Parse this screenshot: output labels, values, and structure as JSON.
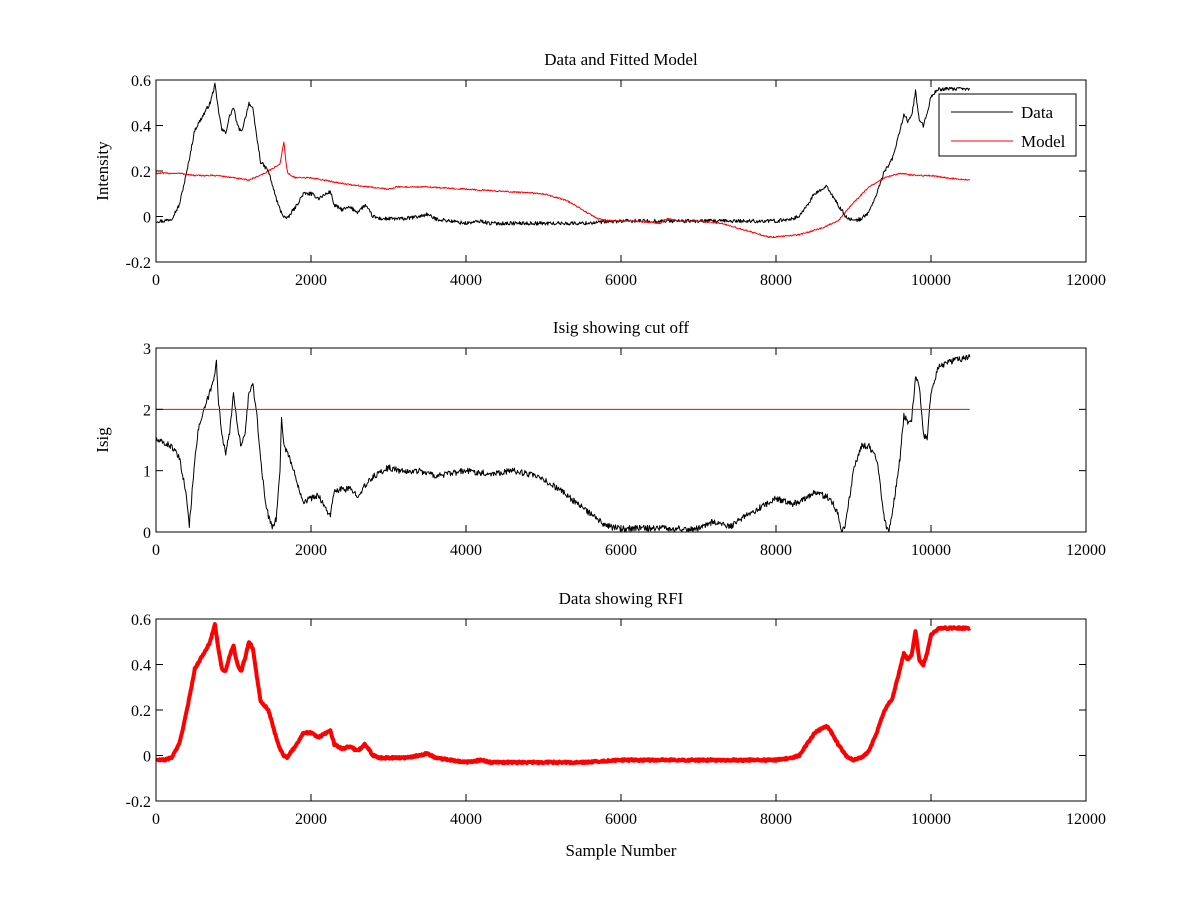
{
  "chart_data": [
    {
      "type": "line",
      "title": "Data and Fitted Model",
      "xlabel": "",
      "ylabel": "Intensity",
      "xlim": [
        0,
        12000
      ],
      "ylim": [
        -0.2,
        0.6
      ],
      "xticks": [
        0,
        2000,
        4000,
        6000,
        8000,
        10000,
        12000
      ],
      "yticks": [
        -0.2,
        0,
        0.2,
        0.4,
        0.6
      ],
      "xtick_labels": [
        "0",
        "2000",
        "4000",
        "6000",
        "8000",
        "10000",
        "12000"
      ],
      "ytick_labels": [
        "-0.2",
        "0",
        "0.2",
        "0.4",
        "0.6"
      ],
      "legend": {
        "position": "top-right",
        "entries": [
          "Data",
          "Model"
        ]
      },
      "series": [
        {
          "name": "Data",
          "color": "#000000",
          "width": 1,
          "noise": 0.008,
          "x": [
            0,
            100,
            200,
            300,
            400,
            500,
            600,
            700,
            760,
            800,
            850,
            900,
            950,
            1000,
            1050,
            1100,
            1150,
            1200,
            1250,
            1300,
            1350,
            1400,
            1450,
            1500,
            1550,
            1600,
            1650,
            1700,
            1750,
            1800,
            1900,
            2000,
            2100,
            2200,
            2250,
            2300,
            2400,
            2500,
            2600,
            2700,
            2800,
            2900,
            3000,
            3200,
            3400,
            3500,
            3600,
            3800,
            4000,
            4200,
            4300,
            4500,
            5000,
            5500,
            6000,
            6500,
            7000,
            7500,
            8000,
            8200,
            8300,
            8400,
            8500,
            8600,
            8650,
            8700,
            8800,
            8900,
            9000,
            9100,
            9200,
            9300,
            9400,
            9500,
            9600,
            9650,
            9700,
            9750,
            9800,
            9850,
            9900,
            9950,
            10000,
            10100,
            10200,
            10300,
            10400,
            10500
          ],
          "values": [
            -0.02,
            -0.02,
            -0.01,
            0.05,
            0.2,
            0.38,
            0.44,
            0.5,
            0.58,
            0.48,
            0.38,
            0.37,
            0.44,
            0.48,
            0.4,
            0.37,
            0.43,
            0.5,
            0.47,
            0.35,
            0.24,
            0.22,
            0.2,
            0.14,
            0.08,
            0.03,
            0.0,
            -0.01,
            0.02,
            0.04,
            0.1,
            0.1,
            0.08,
            0.1,
            0.11,
            0.05,
            0.03,
            0.04,
            0.02,
            0.05,
            0.0,
            -0.01,
            -0.01,
            -0.01,
            0.0,
            0.01,
            -0.01,
            -0.02,
            -0.03,
            -0.02,
            -0.03,
            -0.03,
            -0.03,
            -0.03,
            -0.02,
            -0.02,
            -0.02,
            -0.02,
            -0.02,
            -0.01,
            0.0,
            0.05,
            0.1,
            0.12,
            0.13,
            0.11,
            0.05,
            0.0,
            -0.02,
            -0.01,
            0.02,
            0.1,
            0.2,
            0.25,
            0.38,
            0.45,
            0.42,
            0.44,
            0.55,
            0.42,
            0.4,
            0.45,
            0.53,
            0.56,
            0.56,
            0.56,
            0.56,
            0.56
          ]
        },
        {
          "name": "Model",
          "color": "#ff0000",
          "width": 1,
          "noise": 0.003,
          "x": [
            0,
            300,
            500,
            800,
            1000,
            1200,
            1400,
            1550,
            1600,
            1650,
            1680,
            1700,
            1800,
            2000,
            2500,
            3000,
            3100,
            3500,
            4000,
            4500,
            5000,
            5300,
            5500,
            5700,
            5900,
            6000,
            6200,
            6500,
            6600,
            6800,
            7000,
            7300,
            7500,
            7700,
            7900,
            8000,
            8300,
            8600,
            8800,
            9000,
            9200,
            9400,
            9600,
            9800,
            10000,
            10200,
            10500
          ],
          "values": [
            0.19,
            0.19,
            0.18,
            0.18,
            0.17,
            0.16,
            0.19,
            0.22,
            0.23,
            0.33,
            0.23,
            0.19,
            0.17,
            0.17,
            0.14,
            0.12,
            0.13,
            0.13,
            0.12,
            0.11,
            0.1,
            0.07,
            0.03,
            -0.01,
            -0.02,
            -0.02,
            -0.02,
            -0.03,
            -0.01,
            -0.02,
            -0.02,
            -0.03,
            -0.05,
            -0.07,
            -0.09,
            -0.09,
            -0.08,
            -0.05,
            -0.02,
            0.06,
            0.13,
            0.17,
            0.19,
            0.18,
            0.18,
            0.17,
            0.16
          ]
        }
      ]
    },
    {
      "type": "line",
      "title": "Isig showing cut off",
      "xlabel": "",
      "ylabel": "Isig",
      "xlim": [
        0,
        12000
      ],
      "ylim": [
        0,
        3
      ],
      "xticks": [
        0,
        2000,
        4000,
        6000,
        8000,
        10000,
        12000
      ],
      "yticks": [
        0,
        1,
        2,
        3
      ],
      "xtick_labels": [
        "0",
        "2000",
        "4000",
        "6000",
        "8000",
        "10000",
        "12000"
      ],
      "ytick_labels": [
        "0",
        "1",
        "2",
        "3"
      ],
      "series": [
        {
          "name": "Isig",
          "color": "#000000",
          "width": 1,
          "noise": 0.05,
          "x": [
            0,
            100,
            200,
            300,
            350,
            400,
            430,
            450,
            500,
            550,
            600,
            650,
            700,
            750,
            780,
            800,
            850,
            900,
            950,
            1000,
            1050,
            1100,
            1150,
            1200,
            1250,
            1300,
            1350,
            1400,
            1450,
            1500,
            1550,
            1600,
            1620,
            1650,
            1700,
            1800,
            1900,
            2000,
            2100,
            2200,
            2250,
            2300,
            2400,
            2500,
            2600,
            2700,
            2800,
            3000,
            3200,
            3400,
            3600,
            3800,
            4000,
            4300,
            4600,
            4800,
            5000,
            5200,
            5400,
            5600,
            5800,
            6000,
            6200,
            6500,
            6800,
            7000,
            7200,
            7300,
            7400,
            7600,
            7800,
            8000,
            8200,
            8300,
            8500,
            8600,
            8700,
            8800,
            8850,
            8900,
            9000,
            9100,
            9200,
            9300,
            9400,
            9450,
            9500,
            9600,
            9650,
            9700,
            9750,
            9800,
            9850,
            9900,
            9950,
            10000,
            10100,
            10300,
            10500
          ],
          "values": [
            1.5,
            1.45,
            1.4,
            1.2,
            0.9,
            0.5,
            0.1,
            0.4,
            1.2,
            1.7,
            1.9,
            2.1,
            2.3,
            2.5,
            2.85,
            2.2,
            1.6,
            1.3,
            1.6,
            2.3,
            1.7,
            1.4,
            1.6,
            2.3,
            2.4,
            1.9,
            1.2,
            0.6,
            0.25,
            0.1,
            0.2,
            1.0,
            1.9,
            1.4,
            1.3,
            0.9,
            0.5,
            0.55,
            0.6,
            0.35,
            0.28,
            0.65,
            0.7,
            0.7,
            0.6,
            0.75,
            0.9,
            1.05,
            0.98,
            1.0,
            0.92,
            0.95,
            1.0,
            0.95,
            1.0,
            0.95,
            0.85,
            0.7,
            0.5,
            0.3,
            0.1,
            0.05,
            0.06,
            0.07,
            0.05,
            0.06,
            0.18,
            0.12,
            0.08,
            0.25,
            0.4,
            0.55,
            0.45,
            0.5,
            0.65,
            0.6,
            0.55,
            0.3,
            0.0,
            0.15,
            1.0,
            1.4,
            1.4,
            1.2,
            0.2,
            0.0,
            0.3,
            1.2,
            1.9,
            1.8,
            1.85,
            2.5,
            2.4,
            1.6,
            1.5,
            2.3,
            2.7,
            2.8,
            2.85
          ]
        },
        {
          "name": "Cut off",
          "color": "#ff0000",
          "width": 1,
          "noise": 0,
          "x": [
            0,
            10500
          ],
          "values": [
            2,
            2
          ]
        }
      ]
    },
    {
      "type": "line",
      "title": "Data showing RFI",
      "xlabel": "Sample Number",
      "ylabel": "",
      "xlim": [
        0,
        12000
      ],
      "ylim": [
        -0.2,
        0.6
      ],
      "xticks": [
        0,
        2000,
        4000,
        6000,
        8000,
        10000,
        12000
      ],
      "yticks": [
        -0.2,
        0,
        0.2,
        0.4,
        0.6
      ],
      "xtick_labels": [
        "0",
        "2000",
        "4000",
        "6000",
        "8000",
        "10000",
        "12000"
      ],
      "ytick_labels": [
        "-0.2",
        "0",
        "0.2",
        "0.4",
        "0.6"
      ],
      "series": [
        {
          "name": "RFI",
          "color": "#ff0000",
          "width": 4,
          "noise": 0.004,
          "x": [
            0,
            100,
            200,
            300,
            400,
            500,
            600,
            700,
            760,
            800,
            850,
            900,
            950,
            1000,
            1050,
            1100,
            1150,
            1200,
            1250,
            1300,
            1350,
            1400,
            1450,
            1500,
            1550,
            1600,
            1650,
            1700,
            1750,
            1800,
            1900,
            2000,
            2100,
            2200,
            2250,
            2300,
            2400,
            2500,
            2600,
            2700,
            2800,
            2900,
            3000,
            3200,
            3400,
            3500,
            3600,
            3800,
            4000,
            4200,
            4300,
            4500,
            5000,
            5500,
            6000,
            6500,
            7000,
            7500,
            8000,
            8200,
            8300,
            8400,
            8500,
            8600,
            8650,
            8700,
            8800,
            8900,
            9000,
            9100,
            9200,
            9300,
            9400,
            9500,
            9600,
            9650,
            9700,
            9750,
            9800,
            9850,
            9900,
            9950,
            10000,
            10100,
            10200,
            10300,
            10400,
            10500
          ],
          "values": [
            -0.02,
            -0.02,
            -0.01,
            0.05,
            0.2,
            0.38,
            0.44,
            0.5,
            0.58,
            0.48,
            0.38,
            0.37,
            0.44,
            0.48,
            0.4,
            0.37,
            0.43,
            0.5,
            0.47,
            0.35,
            0.24,
            0.22,
            0.2,
            0.14,
            0.08,
            0.03,
            0.0,
            -0.01,
            0.02,
            0.04,
            0.1,
            0.1,
            0.08,
            0.1,
            0.11,
            0.05,
            0.03,
            0.04,
            0.02,
            0.05,
            0.0,
            -0.01,
            -0.01,
            -0.01,
            0.0,
            0.01,
            -0.01,
            -0.02,
            -0.03,
            -0.02,
            -0.03,
            -0.03,
            -0.03,
            -0.03,
            -0.02,
            -0.02,
            -0.02,
            -0.02,
            -0.02,
            -0.01,
            0.0,
            0.05,
            0.1,
            0.12,
            0.13,
            0.11,
            0.05,
            0.0,
            -0.02,
            -0.01,
            0.02,
            0.1,
            0.2,
            0.25,
            0.38,
            0.45,
            0.42,
            0.44,
            0.55,
            0.42,
            0.4,
            0.45,
            0.53,
            0.56,
            0.56,
            0.56,
            0.56,
            0.56
          ]
        }
      ]
    }
  ]
}
